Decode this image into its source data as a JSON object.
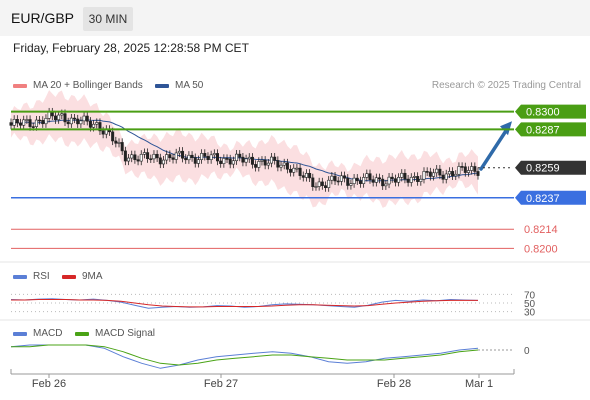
{
  "header": {
    "pair": "EUR/GBP",
    "timeframe": "30 MIN"
  },
  "datetime": "Friday, February 28, 2025 12:28:58 PM CET",
  "legend": {
    "ma_bb": "MA 20 + Bollinger Bands",
    "ma50": "MA 50",
    "credit": "Research © 2025 Trading Central"
  },
  "rsi_legend": {
    "rsi": "RSI",
    "ma": "9MA"
  },
  "macd_legend": {
    "macd": "MACD",
    "signal": "MACD Signal"
  },
  "colors": {
    "resistance": "#4a9e14",
    "support": "#3a6fe0",
    "lower": "#e26060",
    "forecast_arrow": "#2f6aa9",
    "current": "#333333",
    "ma20": "#f08080",
    "ma50": "#2f5597",
    "rsi": "#5b7fd6",
    "rsi_ma": "#d62728",
    "macd": "#5b7fd6",
    "macd_signal": "#4aa316"
  },
  "chart_data": [
    {
      "type": "candlestick",
      "x_labels": [
        "Feb 26",
        "Feb 27",
        "Feb 28",
        "Mar 1"
      ],
      "ylim": [
        0.819,
        0.831
      ],
      "current_price": 0.8259,
      "forecast": {
        "from": 0.8258,
        "to": 0.8293
      },
      "levels": [
        {
          "value": 0.83,
          "label": "0.8300",
          "kind": "resistance"
        },
        {
          "value": 0.8287,
          "label": "0.8287",
          "kind": "resistance"
        },
        {
          "value": 0.8259,
          "label": "0.8259",
          "kind": "current"
        },
        {
          "value": 0.8237,
          "label": "0.8237",
          "kind": "support"
        },
        {
          "value": 0.8214,
          "label": "0.8214",
          "kind": "lower"
        },
        {
          "value": 0.82,
          "label": "0.8200",
          "kind": "lower"
        }
      ],
      "anchors_close": [
        [
          0,
          0.829
        ],
        [
          8,
          0.8293
        ],
        [
          16,
          0.8297
        ],
        [
          20,
          0.8293
        ],
        [
          27,
          0.8291
        ],
        [
          30,
          0.8285
        ],
        [
          36,
          0.8268
        ],
        [
          41,
          0.8266
        ],
        [
          55,
          0.8267
        ],
        [
          70,
          0.8265
        ],
        [
          80,
          0.8263
        ],
        [
          88,
          0.826
        ],
        [
          92,
          0.8252
        ],
        [
          96,
          0.8247
        ],
        [
          104,
          0.825
        ],
        [
          115,
          0.825
        ],
        [
          122,
          0.825
        ],
        [
          129,
          0.8253
        ],
        [
          137,
          0.8255
        ],
        [
          144,
          0.8257
        ],
        [
          147,
          0.8258
        ]
      ],
      "candle_count": 148
    },
    {
      "type": "line",
      "name": "RSI",
      "yticks": [
        70,
        50,
        30
      ],
      "ylim": [
        20,
        80
      ],
      "series": [
        {
          "name": "RSI",
          "values": [
            58,
            57,
            59,
            60,
            58,
            57,
            59,
            56,
            52,
            45,
            38,
            40,
            42,
            40,
            41,
            44,
            43,
            40,
            42,
            46,
            48,
            47,
            46,
            44,
            42,
            40,
            45,
            52,
            56,
            54,
            57,
            55,
            58,
            57,
            56
          ]
        },
        {
          "name": "9MA",
          "values": [
            57,
            57,
            58,
            58,
            58,
            57,
            57,
            56,
            54,
            50,
            46,
            43,
            42,
            41,
            41,
            42,
            42,
            42,
            42,
            43,
            45,
            46,
            46,
            45,
            44,
            43,
            44,
            47,
            50,
            52,
            54,
            55,
            56,
            56,
            56
          ]
        }
      ]
    },
    {
      "type": "line",
      "name": "MACD",
      "yticks": [
        0
      ],
      "ylim": [
        -0.0012,
        0.0006
      ],
      "series": [
        {
          "name": "MACD",
          "values": [
            0.0002,
            0.0003,
            0.0003,
            0.0003,
            0.0003,
            0.0001,
            -0.0004,
            -0.0008,
            -0.0011,
            -0.0009,
            -0.0006,
            -0.0004,
            -0.0003,
            -0.0002,
            -0.0001,
            -0.0002,
            -0.0004,
            -0.0007,
            -0.0008,
            -0.0007,
            -0.0005,
            -0.0004,
            -0.0003,
            -0.0002,
            0.0,
            0.0001
          ]
        },
        {
          "name": "MACD Signal",
          "values": [
            0.0002,
            0.0002,
            0.0003,
            0.0003,
            0.0003,
            0.0002,
            -0.0001,
            -0.0005,
            -0.0008,
            -0.0009,
            -0.0008,
            -0.0006,
            -0.0005,
            -0.0004,
            -0.0003,
            -0.0003,
            -0.0004,
            -0.0005,
            -0.0006,
            -0.0006,
            -0.0006,
            -0.0005,
            -0.0004,
            -0.0003,
            -0.0001,
            0.0
          ]
        }
      ]
    }
  ]
}
